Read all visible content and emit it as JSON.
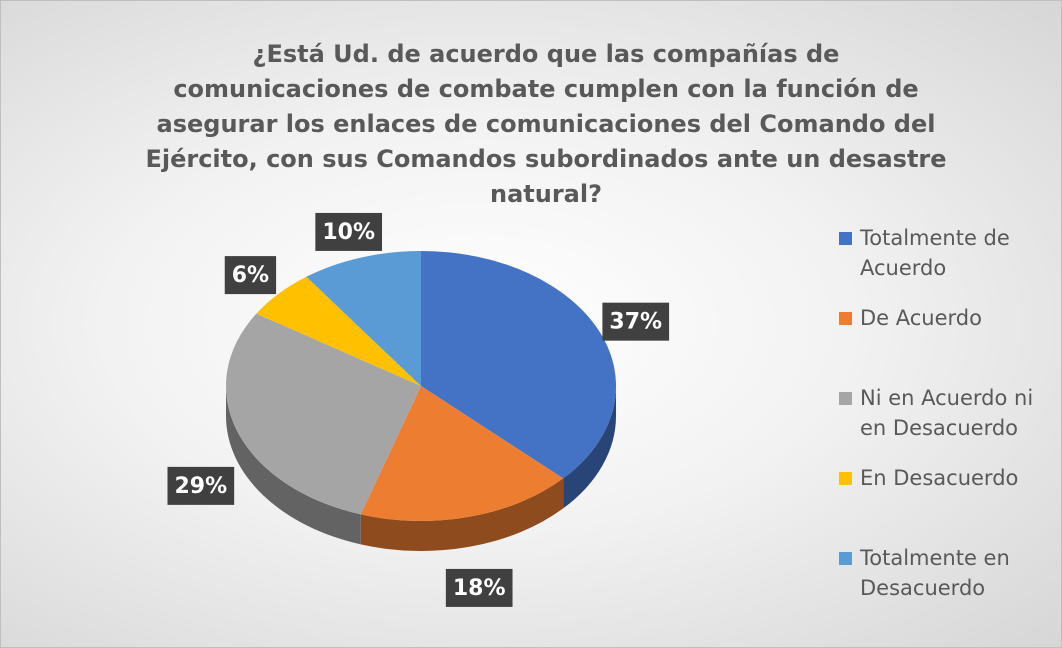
{
  "chart_data": {
    "type": "pie",
    "title": "¿Está Ud. de acuerdo que las compañías de comunicaciones de combate cumplen con la función de asegurar los enlaces de comunicaciones del Comando del Ejército, con sus Comandos subordinados ante un desastre natural?",
    "categories": [
      "Totalmente de Acuerdo",
      "De Acuerdo",
      "Ni en Acuerdo ni en Desacuerdo",
      "En Desacuerdo",
      "Totalmente en Desacuerdo"
    ],
    "values": [
      37,
      18,
      29,
      6,
      10
    ],
    "value_labels": [
      "37%",
      "18%",
      "29%",
      "6%",
      "10%"
    ],
    "colors": [
      "#4472c4",
      "#ed7d31",
      "#a5a5a5",
      "#ffc000",
      "#5b9bd5"
    ],
    "legend": "right"
  }
}
